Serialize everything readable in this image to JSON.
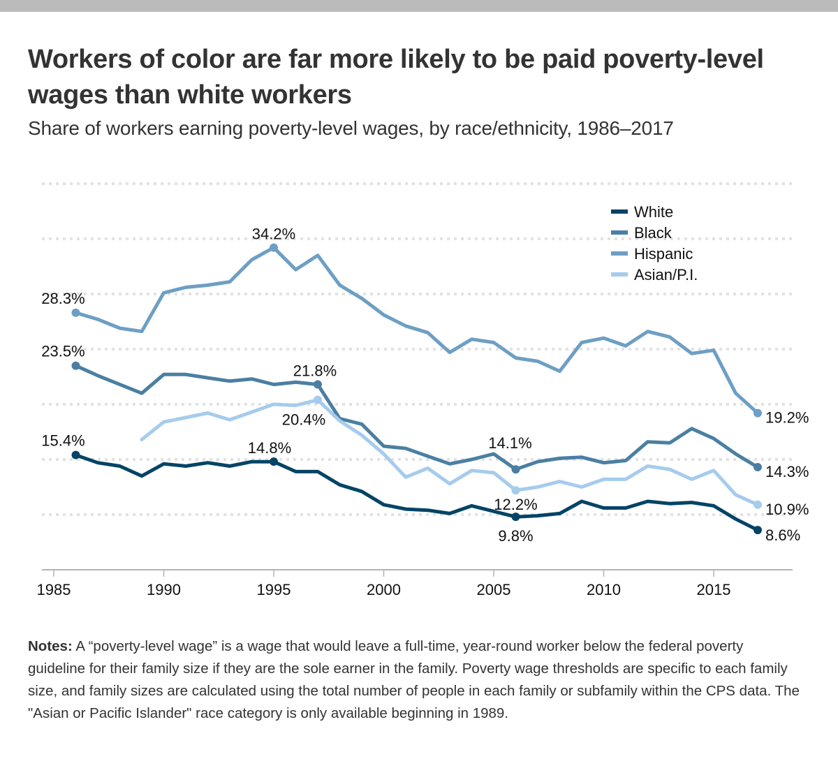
{
  "header": {
    "title": "Workers of color are far more likely to be paid poverty-level wages than white workers",
    "subtitle": "Share of workers earning poverty-level wages, by race/ethnicity, 1986–2017"
  },
  "notes": {
    "label": "Notes:",
    "text": " A “poverty-level wage” is a wage that would leave a full-time, year-round worker below the federal poverty guideline for their family size if they are the sole earner in the family. Poverty wage thresholds are specific to each family size, and family sizes are calculated using the total number of people in each family or subfamily within the CPS data. The \"Asian or Pacific Islander\" race category is only available beginning in 1989."
  },
  "chart_data": {
    "type": "line",
    "title": "Workers of color are far more likely to be paid poverty-level wages than white workers",
    "subtitle": "Share of workers earning poverty-level wages, by race/ethnicity, 1986–2017",
    "xlabel": "",
    "ylabel": "",
    "xlim": [
      1985,
      2018
    ],
    "ylim": [
      5,
      40
    ],
    "x_ticks": [
      1985,
      1990,
      1995,
      2000,
      2005,
      2010,
      2015
    ],
    "y_gridlines": [
      10,
      15,
      20,
      25,
      30,
      35,
      40
    ],
    "grid": true,
    "y_tick_labels_shown": false,
    "legend_position": "top-right",
    "series": [
      {
        "name": "White",
        "color": "#034466",
        "start_year": 1986,
        "values": [
          15.4,
          14.7,
          14.4,
          13.5,
          14.6,
          14.4,
          14.7,
          14.4,
          14.8,
          14.8,
          13.9,
          13.9,
          12.7,
          12.1,
          10.9,
          10.5,
          10.4,
          10.1,
          10.8,
          10.3,
          9.8,
          9.9,
          10.1,
          11.2,
          10.6,
          10.6,
          11.2,
          11.0,
          11.1,
          10.8,
          9.6,
          8.6
        ]
      },
      {
        "name": "Black",
        "color": "#4a7fa2",
        "start_year": 1986,
        "values": [
          23.5,
          22.6,
          21.8,
          21.0,
          22.7,
          22.7,
          22.4,
          22.1,
          22.3,
          21.8,
          22.0,
          21.8,
          18.7,
          18.2,
          16.2,
          16.0,
          15.3,
          14.6,
          15.0,
          15.5,
          14.1,
          14.8,
          15.1,
          15.2,
          14.7,
          14.9,
          16.6,
          16.5,
          17.8,
          16.9,
          15.5,
          14.3
        ]
      },
      {
        "name": "Hispanic",
        "color": "#6d9fc4",
        "start_year": 1986,
        "values": [
          28.3,
          27.7,
          26.9,
          26.6,
          30.1,
          30.6,
          30.8,
          31.1,
          33.1,
          34.2,
          32.2,
          33.5,
          30.8,
          29.6,
          28.1,
          27.1,
          26.5,
          24.7,
          25.9,
          25.6,
          24.2,
          23.9,
          23.0,
          25.6,
          26.0,
          25.3,
          26.6,
          26.1,
          24.6,
          24.9,
          21.0,
          19.2
        ]
      },
      {
        "name": "Asian/P.I.",
        "color": "#a6cbed",
        "start_year": 1989,
        "values": [
          16.8,
          18.4,
          18.8,
          19.2,
          18.6,
          19.3,
          20.0,
          19.9,
          20.4,
          18.5,
          17.2,
          15.5,
          13.4,
          14.2,
          12.8,
          14.0,
          13.8,
          12.2,
          12.5,
          13.0,
          12.5,
          13.2,
          13.2,
          14.4,
          14.1,
          13.2,
          14.0,
          11.8,
          10.9
        ]
      }
    ],
    "annotations": [
      {
        "series": "Hispanic",
        "year": 1986,
        "label": "28.3%",
        "place": "above-left"
      },
      {
        "series": "Hispanic",
        "year": 1995,
        "label": "34.2%",
        "place": "above"
      },
      {
        "series": "Hispanic",
        "year": 2017,
        "label": "19.2%",
        "place": "right"
      },
      {
        "series": "Black",
        "year": 1986,
        "label": "23.5%",
        "place": "above-left"
      },
      {
        "series": "Black",
        "year": 1997,
        "label": "21.8%",
        "place": "above"
      },
      {
        "series": "Black",
        "year": 2006,
        "label": "14.1%",
        "place": "above"
      },
      {
        "series": "Black",
        "year": 2017,
        "label": "14.3%",
        "place": "right"
      },
      {
        "series": "Asian/P.I.",
        "year": 1997,
        "label": "20.4%",
        "place": "below"
      },
      {
        "series": "Asian/P.I.",
        "year": 2006,
        "label": "12.2%",
        "place": "below"
      },
      {
        "series": "Asian/P.I.",
        "year": 2017,
        "label": "10.9%",
        "place": "right"
      },
      {
        "series": "White",
        "year": 1986,
        "label": "15.4%",
        "place": "above-left"
      },
      {
        "series": "White",
        "year": 1995,
        "label": "14.8%",
        "place": "above"
      },
      {
        "series": "White",
        "year": 2006,
        "label": "9.8%",
        "place": "below"
      },
      {
        "series": "White",
        "year": 2017,
        "label": "8.6%",
        "place": "right"
      }
    ]
  }
}
